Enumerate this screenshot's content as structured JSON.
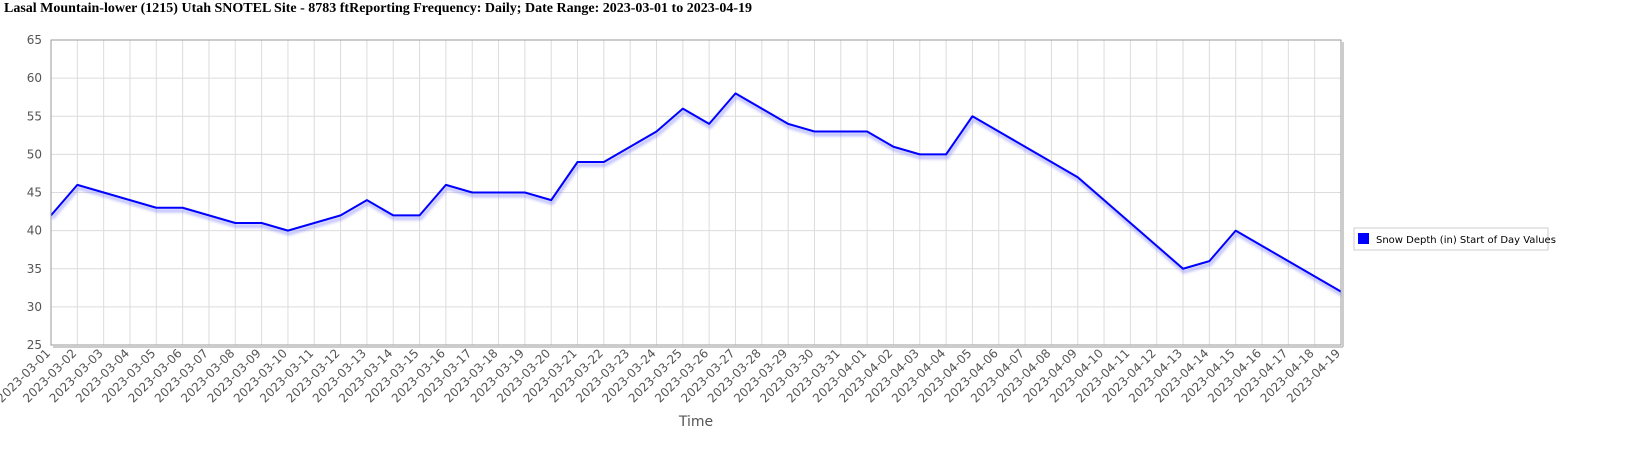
{
  "chart_data": {
    "type": "line",
    "title": "Lasal Mountain-lower (1215) Utah  SNOTEL Site - 8783 ftReporting Frequency: Daily; Date Range: 2023-03-01 to 2023-04-19",
    "xlabel": "Time",
    "ylabel": "",
    "ylim": [
      25,
      65
    ],
    "yticks": [
      25,
      30,
      35,
      40,
      45,
      50,
      55,
      60,
      65
    ],
    "grid": true,
    "legend_position": "right",
    "x": [
      "2023-03-01",
      "2023-03-02",
      "2023-03-03",
      "2023-03-04",
      "2023-03-05",
      "2023-03-06",
      "2023-03-07",
      "2023-03-08",
      "2023-03-09",
      "2023-03-10",
      "2023-03-11",
      "2023-03-12",
      "2023-03-13",
      "2023-03-14",
      "2023-03-15",
      "2023-03-16",
      "2023-03-17",
      "2023-03-18",
      "2023-03-19",
      "2023-03-20",
      "2023-03-21",
      "2023-03-22",
      "2023-03-23",
      "2023-03-24",
      "2023-03-25",
      "2023-03-26",
      "2023-03-27",
      "2023-03-28",
      "2023-03-29",
      "2023-03-30",
      "2023-03-31",
      "2023-04-01",
      "2023-04-02",
      "2023-04-03",
      "2023-04-04",
      "2023-04-05",
      "2023-04-06",
      "2023-04-07",
      "2023-04-08",
      "2023-04-09",
      "2023-04-10",
      "2023-04-11",
      "2023-04-12",
      "2023-04-13",
      "2023-04-14",
      "2023-04-15",
      "2023-04-16",
      "2023-04-17",
      "2023-04-18",
      "2023-04-19"
    ],
    "series": [
      {
        "name": "Snow  Depth (in) Start of Day Values",
        "color": "#0000ff",
        "values": [
          42,
          46,
          45,
          44,
          43,
          43,
          42,
          41,
          41,
          40,
          41,
          42,
          44,
          42,
          42,
          46,
          45,
          45,
          45,
          44,
          49,
          49,
          51,
          53,
          56,
          54,
          58,
          56,
          54,
          53,
          53,
          53,
          51,
          50,
          50,
          55,
          53,
          51,
          49,
          47,
          44,
          41,
          38,
          35,
          36,
          40,
          38,
          36,
          34,
          32
        ]
      }
    ]
  }
}
